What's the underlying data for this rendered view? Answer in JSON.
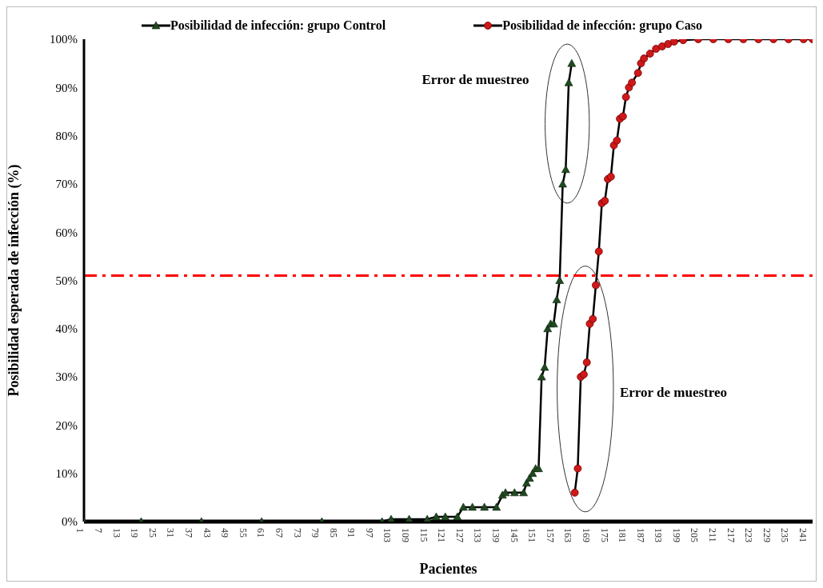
{
  "chart_data": {
    "type": "line",
    "xlabel": "Pacientes",
    "ylabel": "Posibilidad esperada de infección (%)",
    "xlim": [
      1,
      243
    ],
    "xticks": [
      1,
      7,
      13,
      19,
      25,
      31,
      37,
      43,
      49,
      55,
      61,
      67,
      73,
      79,
      85,
      91,
      97,
      103,
      109,
      115,
      121,
      127,
      133,
      139,
      145,
      151,
      157,
      163,
      169,
      175,
      181,
      187,
      193,
      199,
      205,
      211,
      217,
      223,
      229,
      235,
      241
    ],
    "ylim": [
      0,
      100
    ],
    "yticks": [
      {
        "value": 0,
        "label": "0%"
      },
      {
        "value": 10,
        "label": "10%"
      },
      {
        "value": 20,
        "label": "20%"
      },
      {
        "value": 30,
        "label": "30%"
      },
      {
        "value": 40,
        "label": "40%"
      },
      {
        "value": 50,
        "label": "50%"
      },
      {
        "value": 60,
        "label": "60%"
      },
      {
        "value": 70,
        "label": "70%"
      },
      {
        "value": 80,
        "label": "80%"
      },
      {
        "value": 90,
        "label": "90%"
      },
      {
        "value": 100,
        "label": "100%"
      }
    ],
    "legend": "top",
    "line_style": "solid",
    "series": [
      {
        "name": "Posibilidad de infección: grupo Control",
        "color": "#1f4a1f",
        "marker": "triangle",
        "x": [
          1,
          20,
          40,
          60,
          80,
          100,
          103,
          109,
          115,
          118,
          121,
          125,
          127,
          130,
          134,
          138,
          140,
          141,
          144,
          147,
          148,
          149,
          150,
          151,
          152,
          153,
          154,
          155,
          156,
          157,
          158,
          159,
          160,
          161,
          162,
          163
        ],
        "values": [
          0,
          0,
          0,
          0,
          0,
          0,
          0.5,
          0.5,
          0.5,
          1,
          1,
          1,
          3,
          3,
          3,
          3,
          5.5,
          6,
          6,
          6,
          8,
          9,
          10,
          11,
          11,
          30,
          32,
          40,
          41,
          41,
          46,
          50,
          70,
          73,
          91,
          95
        ]
      },
      {
        "name": "Posibilidad de infección: grupo Caso",
        "color": "#d01818",
        "marker": "circle",
        "x": [
          164,
          165,
          166,
          167,
          168,
          169,
          170,
          171,
          172,
          173,
          174,
          175,
          176,
          177,
          178,
          179,
          180,
          181,
          182,
          183,
          185,
          186,
          187,
          189,
          191,
          193,
          195,
          197,
          200,
          205,
          210,
          215,
          220,
          225,
          230,
          235,
          240,
          243
        ],
        "values": [
          6,
          11,
          30,
          30.5,
          33,
          41,
          42,
          49,
          56,
          66,
          66.5,
          71,
          71.5,
          78,
          79,
          83.5,
          84,
          88,
          90,
          91,
          93,
          95,
          96,
          97,
          98,
          98.5,
          99,
          99.5,
          99.8,
          100,
          100,
          100,
          100,
          100,
          100,
          100,
          100,
          100
        ]
      }
    ],
    "ref_lines": [
      {
        "axis": "y",
        "value": 51,
        "color": "#ff0000",
        "line_style": "dashed"
      }
    ],
    "annotations": [
      "Error de muestreo",
      "Error de muestreo"
    ]
  }
}
